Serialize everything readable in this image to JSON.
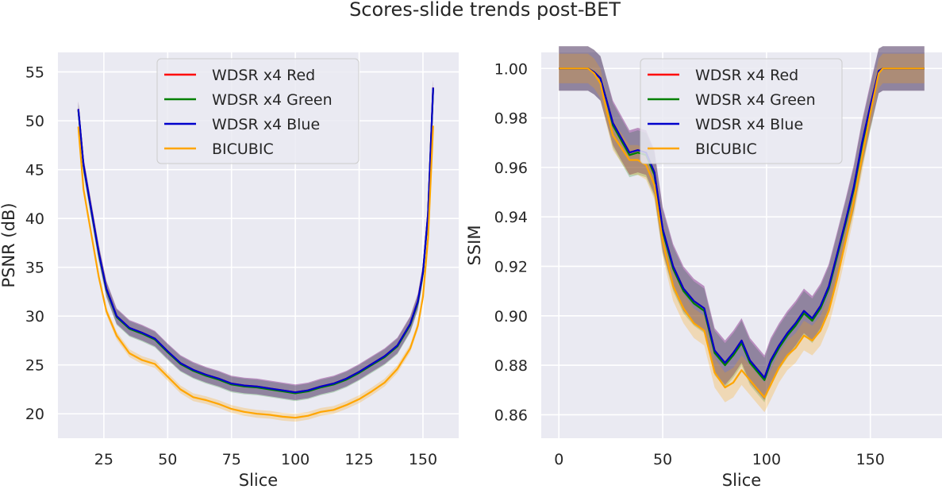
{
  "figure": {
    "title": "Scores-slide trends post-BET"
  },
  "chart_data": [
    {
      "type": "line",
      "xlabel": "Slice",
      "ylabel": "PSNR (dB)",
      "xlim": [
        7,
        164
      ],
      "ylim": [
        17.5,
        57
      ],
      "xticks": [
        25,
        50,
        75,
        100,
        125,
        150
      ],
      "yticks": [
        20,
        25,
        30,
        35,
        40,
        45,
        50,
        55
      ],
      "xtick_labels": [
        "25",
        "50",
        "75",
        "100",
        "125",
        "150"
      ],
      "ytick_labels": [
        "20",
        "25",
        "30",
        "35",
        "40",
        "45",
        "50",
        "55"
      ],
      "grid": true,
      "legend": "top-center",
      "x": [
        15,
        17,
        20,
        23,
        26,
        30,
        35,
        40,
        45,
        50,
        55,
        60,
        65,
        70,
        75,
        80,
        85,
        90,
        95,
        100,
        105,
        110,
        115,
        120,
        125,
        130,
        135,
        140,
        145,
        148,
        150,
        152,
        154
      ],
      "series": [
        {
          "name": "WDSR x4 Red",
          "color": "#ff0000",
          "band": 0.8,
          "values": [
            51.2,
            45.5,
            41.0,
            36.5,
            32.8,
            30.0,
            28.8,
            28.3,
            27.7,
            26.4,
            25.2,
            24.5,
            24.0,
            23.6,
            23.1,
            22.9,
            22.8,
            22.6,
            22.4,
            22.2,
            22.4,
            22.8,
            23.1,
            23.6,
            24.3,
            25.1,
            25.9,
            27.0,
            29.2,
            31.5,
            34.5,
            40.5,
            53.4
          ]
        },
        {
          "name": "WDSR x4 Green",
          "color": "#008000",
          "band": 0.8,
          "values": [
            51.1,
            45.4,
            40.9,
            36.4,
            32.7,
            29.9,
            28.7,
            28.2,
            27.6,
            26.3,
            25.1,
            24.4,
            23.9,
            23.5,
            23.0,
            22.8,
            22.7,
            22.5,
            22.3,
            22.1,
            22.3,
            22.7,
            23.0,
            23.5,
            24.2,
            25.0,
            25.8,
            26.9,
            29.1,
            31.4,
            34.4,
            40.4,
            53.3
          ]
        },
        {
          "name": "WDSR x4 Blue",
          "color": "#0000cc",
          "band": 0.8,
          "values": [
            51.2,
            45.5,
            41.0,
            36.5,
            32.8,
            30.0,
            28.8,
            28.3,
            27.7,
            26.4,
            25.2,
            24.5,
            24.0,
            23.6,
            23.1,
            22.9,
            22.8,
            22.6,
            22.4,
            22.2,
            22.4,
            22.8,
            23.1,
            23.6,
            24.3,
            25.1,
            25.9,
            27.0,
            29.2,
            31.5,
            34.5,
            40.5,
            53.4
          ]
        },
        {
          "name": "BICUBIC",
          "color": "#ffa500",
          "band": 0.4,
          "values": [
            49.4,
            43.0,
            38.5,
            34.0,
            30.5,
            28.0,
            26.2,
            25.5,
            25.1,
            23.8,
            22.5,
            21.7,
            21.4,
            21.0,
            20.5,
            20.2,
            20.0,
            19.9,
            19.7,
            19.6,
            19.8,
            20.2,
            20.4,
            20.9,
            21.5,
            22.3,
            23.2,
            24.6,
            26.7,
            29.0,
            32.0,
            38.0,
            49.5
          ]
        }
      ]
    },
    {
      "type": "line",
      "xlabel": "Slice",
      "ylabel": "SSIM",
      "xlim": [
        -8.5,
        184.5
      ],
      "ylim": [
        0.8505,
        1.0065
      ],
      "xticks": [
        0,
        50,
        100,
        150
      ],
      "yticks": [
        0.86,
        0.88,
        0.9,
        0.92,
        0.94,
        0.96,
        0.98,
        1.0
      ],
      "xtick_labels": [
        "0",
        "50",
        "100",
        "150"
      ],
      "ytick_labels": [
        "0.86",
        "0.88",
        "0.90",
        "0.92",
        "0.94",
        "0.96",
        "0.98",
        "1.00"
      ],
      "grid": true,
      "legend": "top-center",
      "x": [
        0,
        14,
        17,
        20,
        23,
        26,
        30,
        34,
        38,
        42,
        46,
        50,
        55,
        60,
        65,
        70,
        75,
        80,
        84,
        88,
        92,
        96,
        99,
        102,
        106,
        110,
        114,
        118,
        122,
        126,
        130,
        134,
        138,
        142,
        146,
        150,
        154,
        156,
        165,
        176
      ],
      "series": [
        {
          "name": "WDSR x4 Red",
          "color": "#ff0000",
          "band": 0.009,
          "values": [
            1.0,
            1.0,
            0.9985,
            0.996,
            0.987,
            0.978,
            0.972,
            0.966,
            0.967,
            0.966,
            0.958,
            0.935,
            0.92,
            0.911,
            0.906,
            0.903,
            0.886,
            0.881,
            0.885,
            0.89,
            0.882,
            0.878,
            0.875,
            0.882,
            0.888,
            0.893,
            0.897,
            0.902,
            0.899,
            0.904,
            0.912,
            0.925,
            0.938,
            0.952,
            0.97,
            0.985,
            0.999,
            1.0,
            1.0,
            1.0
          ]
        },
        {
          "name": "WDSR x4 Green",
          "color": "#008000",
          "band": 0.009,
          "values": [
            1.0,
            1.0,
            0.9985,
            0.996,
            0.987,
            0.977,
            0.971,
            0.965,
            0.966,
            0.965,
            0.957,
            0.934,
            0.919,
            0.91,
            0.905,
            0.902,
            0.885,
            0.88,
            0.884,
            0.889,
            0.881,
            0.877,
            0.874,
            0.881,
            0.887,
            0.892,
            0.896,
            0.901,
            0.898,
            0.903,
            0.911,
            0.924,
            0.937,
            0.951,
            0.969,
            0.984,
            0.999,
            1.0,
            1.0,
            1.0
          ]
        },
        {
          "name": "WDSR x4 Blue",
          "color": "#0000cc",
          "band": 0.009,
          "values": [
            1.0,
            1.0,
            0.9985,
            0.996,
            0.987,
            0.978,
            0.972,
            0.966,
            0.967,
            0.966,
            0.958,
            0.935,
            0.92,
            0.911,
            0.906,
            0.903,
            0.886,
            0.881,
            0.885,
            0.89,
            0.882,
            0.878,
            0.875,
            0.882,
            0.888,
            0.893,
            0.897,
            0.902,
            0.899,
            0.904,
            0.912,
            0.925,
            0.938,
            0.952,
            0.97,
            0.985,
            0.999,
            1.0,
            1.0,
            1.0
          ]
        },
        {
          "name": "BICUBIC",
          "color": "#ffa500",
          "band": 0.006,
          "values": [
            1.0,
            1.0,
            0.998,
            0.994,
            0.983,
            0.973,
            0.968,
            0.963,
            0.963,
            0.961,
            0.953,
            0.93,
            0.912,
            0.903,
            0.897,
            0.894,
            0.877,
            0.871,
            0.873,
            0.878,
            0.874,
            0.87,
            0.867,
            0.872,
            0.879,
            0.884,
            0.887,
            0.892,
            0.89,
            0.894,
            0.902,
            0.915,
            0.93,
            0.946,
            0.964,
            0.982,
            0.998,
            1.0,
            1.0,
            1.0
          ]
        }
      ]
    }
  ]
}
